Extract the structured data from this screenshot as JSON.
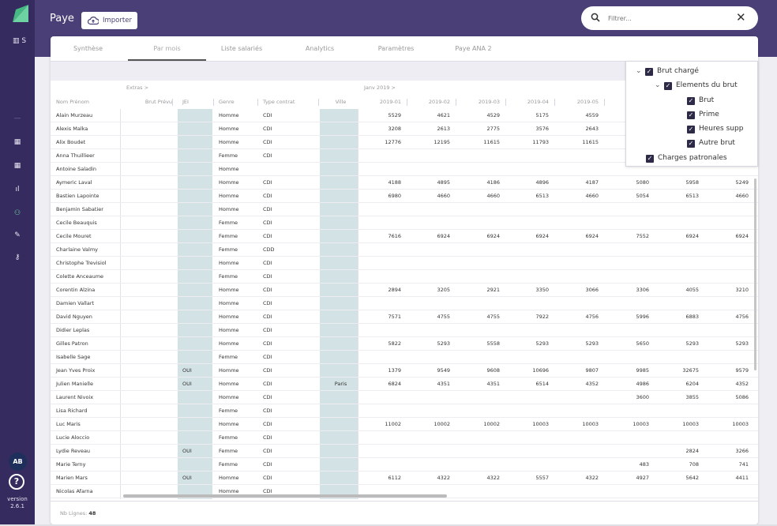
{
  "app": {
    "title": "Paye",
    "import_label": "Importer",
    "version_label": "version",
    "version": "2.6.1",
    "avatar_initials": "AB",
    "sidebar_section_letter": "S",
    "help_glyph": "?"
  },
  "search": {
    "placeholder": "Filtrer...",
    "value": ""
  },
  "tabs": [
    "Synthèse",
    "Par mois",
    "Liste salariés",
    "Analytics",
    "Paramètres",
    "Paye ANA 2"
  ],
  "active_tab": "Par mois",
  "groups": {
    "extras": "Extras  >",
    "janv": "Janv 2019  >"
  },
  "columns": [
    "Nom Prénom",
    "Brut Prévu",
    "JEI",
    "Genre",
    "Type contrat",
    "Ville",
    "2019-01",
    "2019-02",
    "2019-03",
    "2019-04",
    "2019-05"
  ],
  "rows": [
    {
      "name": "Alain Murzeau",
      "jei": "",
      "genre": "Homme",
      "contrat": "CDI",
      "ville": "",
      "v": [
        "5529",
        "4621",
        "4529",
        "5175",
        "4559",
        "",
        "",
        ""
      ]
    },
    {
      "name": "Alexis Malka",
      "jei": "",
      "genre": "Homme",
      "contrat": "CDI",
      "ville": "",
      "v": [
        "3208",
        "2613",
        "2775",
        "3576",
        "2643",
        "",
        "",
        ""
      ]
    },
    {
      "name": "Alix Boudet",
      "jei": "",
      "genre": "Homme",
      "contrat": "CDI",
      "ville": "",
      "v": [
        "12776",
        "12195",
        "11615",
        "11793",
        "11615",
        "",
        "",
        ""
      ]
    },
    {
      "name": "Anna Thuillieer",
      "jei": "",
      "genre": "Femme",
      "contrat": "CDI",
      "ville": "",
      "v": [
        "",
        "",
        "",
        "",
        "",
        "",
        "",
        ""
      ]
    },
    {
      "name": "Antoine Saladin",
      "jei": "",
      "genre": "Homme",
      "contrat": "",
      "ville": "",
      "v": [
        "",
        "",
        "",
        "",
        "",
        "",
        "",
        ""
      ]
    },
    {
      "name": "Aymeric Laval",
      "jei": "",
      "genre": "Homme",
      "contrat": "CDI",
      "ville": "",
      "v": [
        "4188",
        "4895",
        "4186",
        "4896",
        "4187",
        "5080",
        "5958",
        "5249"
      ]
    },
    {
      "name": "Bastien Lapointe",
      "jei": "",
      "genre": "Homme",
      "contrat": "CDI",
      "ville": "",
      "v": [
        "6980",
        "4660",
        "4660",
        "6513",
        "4660",
        "5054",
        "6513",
        "4660"
      ]
    },
    {
      "name": "Benjamin Sabatier",
      "jei": "",
      "genre": "Homme",
      "contrat": "CDI",
      "ville": "",
      "v": [
        "",
        "",
        "",
        "",
        "",
        "",
        "",
        ""
      ]
    },
    {
      "name": "Cecile Beauquis",
      "jei": "",
      "genre": "Femme",
      "contrat": "CDI",
      "ville": "",
      "v": [
        "",
        "",
        "",
        "",
        "",
        "",
        "",
        ""
      ]
    },
    {
      "name": "Cecile Mouret",
      "jei": "",
      "genre": "Femme",
      "contrat": "CDI",
      "ville": "",
      "v": [
        "7616",
        "6924",
        "6924",
        "6924",
        "6924",
        "7552",
        "6924",
        "6924"
      ]
    },
    {
      "name": "Charlaine Valmy",
      "jei": "",
      "genre": "Femme",
      "contrat": "CDD",
      "ville": "",
      "v": [
        "",
        "",
        "",
        "",
        "",
        "",
        "",
        ""
      ]
    },
    {
      "name": "Christophe Trevisiol",
      "jei": "",
      "genre": "Homme",
      "contrat": "CDI",
      "ville": "",
      "v": [
        "",
        "",
        "",
        "",
        "",
        "",
        "",
        ""
      ]
    },
    {
      "name": "Colette Anceaume",
      "jei": "",
      "genre": "Femme",
      "contrat": "CDI",
      "ville": "",
      "v": [
        "",
        "",
        "",
        "",
        "",
        "",
        "",
        ""
      ]
    },
    {
      "name": "Corentin Alzina",
      "jei": "",
      "genre": "Homme",
      "contrat": "CDI",
      "ville": "",
      "v": [
        "2894",
        "3205",
        "2921",
        "3350",
        "3066",
        "3306",
        "4055",
        "3210"
      ]
    },
    {
      "name": "Damien Vallart",
      "jei": "",
      "genre": "Homme",
      "contrat": "CDI",
      "ville": "",
      "v": [
        "",
        "",
        "",
        "",
        "",
        "",
        "",
        ""
      ]
    },
    {
      "name": "David Nguyen",
      "jei": "",
      "genre": "Homme",
      "contrat": "CDI",
      "ville": "",
      "v": [
        "7571",
        "4755",
        "4755",
        "7922",
        "4756",
        "5996",
        "6883",
        "4756"
      ]
    },
    {
      "name": "Didier Leplas",
      "jei": "",
      "genre": "Homme",
      "contrat": "CDI",
      "ville": "",
      "v": [
        "",
        "",
        "",
        "",
        "",
        "",
        "",
        ""
      ]
    },
    {
      "name": "Gilles Patron",
      "jei": "",
      "genre": "Homme",
      "contrat": "CDI",
      "ville": "",
      "v": [
        "5822",
        "5293",
        "5558",
        "5293",
        "5293",
        "5650",
        "5293",
        "5293"
      ]
    },
    {
      "name": "Isabelle Sage",
      "jei": "",
      "genre": "Femme",
      "contrat": "CDI",
      "ville": "",
      "v": [
        "",
        "",
        "",
        "",
        "",
        "",
        "",
        ""
      ]
    },
    {
      "name": "Jean Yves Proix",
      "jei": "OUI",
      "genre": "Homme",
      "contrat": "CDI",
      "ville": "",
      "v": [
        "1379",
        "9549",
        "9608",
        "10696",
        "9807",
        "9985",
        "32675",
        "9579"
      ]
    },
    {
      "name": "Julien Manielle",
      "jei": "OUI",
      "genre": "Homme",
      "contrat": "CDI",
      "ville": "Paris",
      "v": [
        "6824",
        "4351",
        "4351",
        "6514",
        "4352",
        "4986",
        "6204",
        "4352"
      ]
    },
    {
      "name": "Laurent Nivoix",
      "jei": "",
      "genre": "Homme",
      "contrat": "CDI",
      "ville": "",
      "v": [
        "",
        "",
        "",
        "",
        "",
        "3600",
        "3855",
        "5086"
      ]
    },
    {
      "name": "Lisa Richard",
      "jei": "",
      "genre": "Femme",
      "contrat": "CDI",
      "ville": "",
      "v": [
        "",
        "",
        "",
        "",
        "",
        "",
        "",
        ""
      ]
    },
    {
      "name": "Luc Maris",
      "jei": "",
      "genre": "Homme",
      "contrat": "CDI",
      "ville": "",
      "v": [
        "11002",
        "10002",
        "10002",
        "10003",
        "10003",
        "10003",
        "10003",
        "10003"
      ]
    },
    {
      "name": "Lucie Aloccio",
      "jei": "",
      "genre": "Femme",
      "contrat": "CDI",
      "ville": "",
      "v": [
        "",
        "",
        "",
        "",
        "",
        "",
        "",
        ""
      ]
    },
    {
      "name": "Lydie Reveau",
      "jei": "OUI",
      "genre": "Femme",
      "contrat": "CDI",
      "ville": "",
      "v": [
        "",
        "",
        "",
        "",
        "",
        "",
        "2824",
        "3266"
      ]
    },
    {
      "name": "Marie Terny",
      "jei": "",
      "genre": "Femme",
      "contrat": "CDI",
      "ville": "",
      "v": [
        "",
        "",
        "",
        "",
        "",
        "483",
        "708",
        "741"
      ]
    },
    {
      "name": "Marien Mars",
      "jei": "OUI",
      "genre": "Homme",
      "contrat": "CDI",
      "ville": "",
      "v": [
        "6112",
        "4322",
        "4322",
        "5557",
        "4322",
        "4927",
        "5642",
        "4411"
      ]
    },
    {
      "name": "Nicolas Afarna",
      "jei": "",
      "genre": "Homme",
      "contrat": "CDI",
      "ville": "",
      "v": [
        "",
        "",
        "",
        "",
        "",
        "",
        "",
        ""
      ]
    }
  ],
  "footer": {
    "label": "Nb Lignes:",
    "count": "48"
  },
  "panel": {
    "brut_charge": "Brut chargé",
    "elements_du_brut": "Elements du brut",
    "brut": "Brut",
    "prime": "Prime",
    "heures_supp": "Heures supp",
    "autre_brut": "Autre brut",
    "charges_patronales": "Charges patronales"
  },
  "colors": {
    "sidebar": "#352b5e",
    "header": "#4a3f77",
    "highlight_column": "#d3e3e5",
    "checkbox": "#2d2a47"
  }
}
